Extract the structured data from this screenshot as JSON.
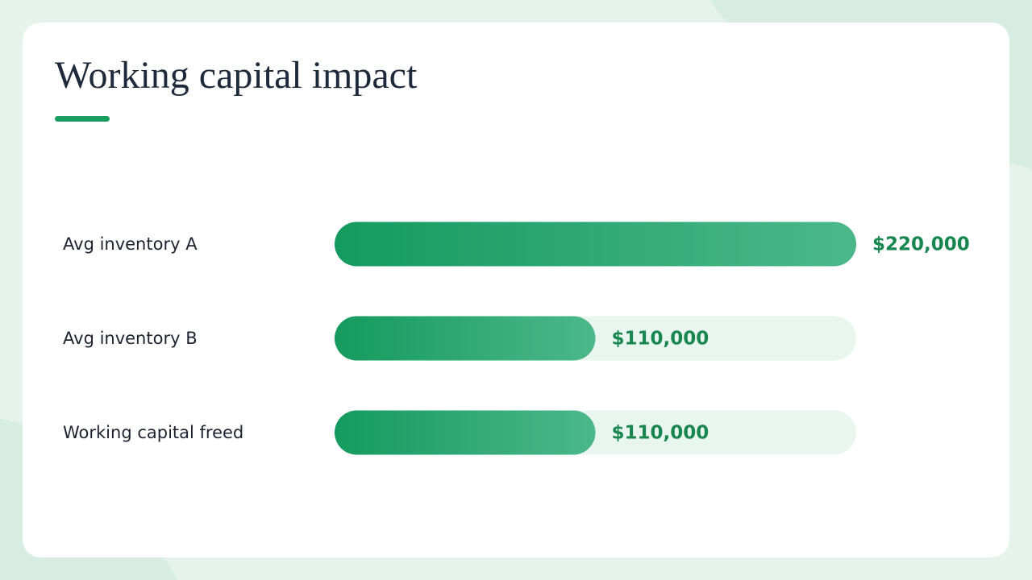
{
  "chart_data": {
    "type": "bar",
    "title": "Working capital impact",
    "categories": [
      "Avg inventory A",
      "Avg inventory B",
      "Working capital freed"
    ],
    "values": [
      220000,
      110000,
      110000
    ],
    "value_labels": [
      "$220,000",
      "$110,000",
      "$110,000"
    ],
    "color": "#149a5f",
    "xlim": [
      0,
      220000
    ]
  }
}
